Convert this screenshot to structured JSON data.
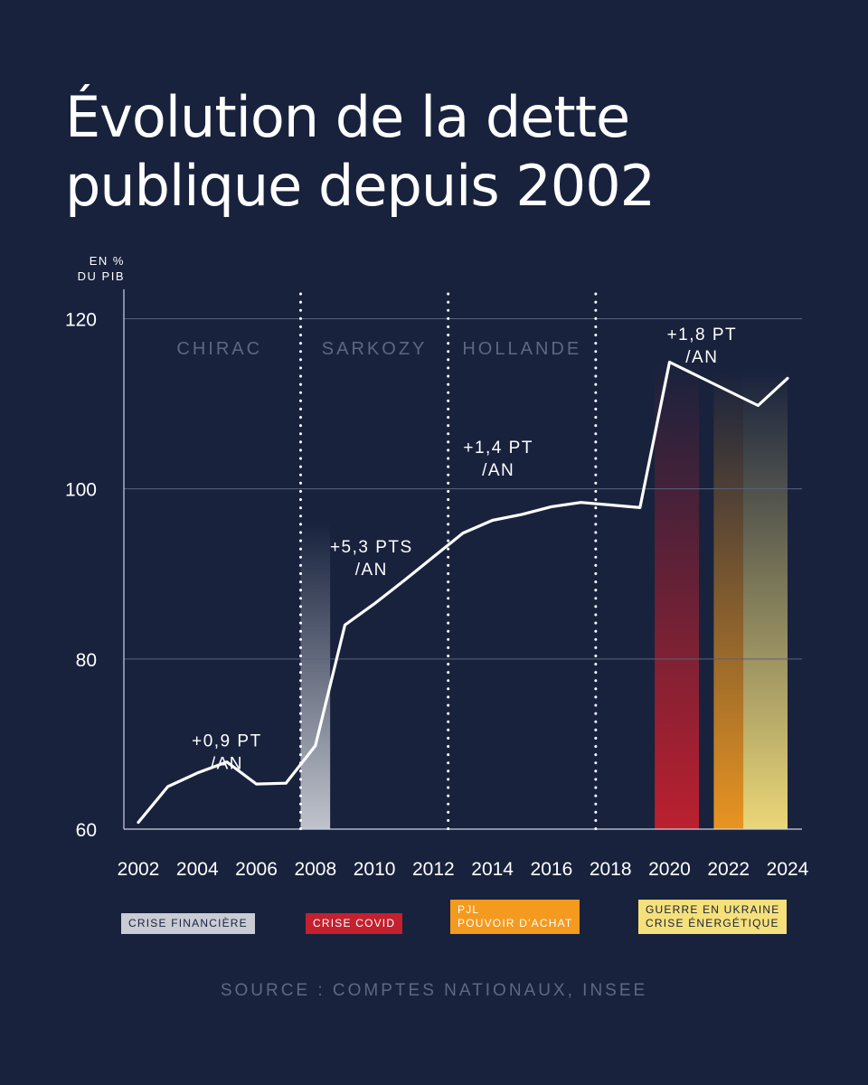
{
  "title_lines": [
    "Évolution de la dette",
    "publique depuis 2002"
  ],
  "unit_lines": [
    "EN %",
    "DU PIB"
  ],
  "source": "SOURCE : COMPTES NATIONAUX, INSEE",
  "legend": [
    {
      "id": "fin",
      "lines": [
        "CRISE FINANCIÈRE"
      ],
      "color": "#c9ccd4"
    },
    {
      "id": "covid",
      "lines": [
        "CRISE COVID"
      ],
      "color": "#c4202e"
    },
    {
      "id": "pjl",
      "lines": [
        "PJL",
        "POUVOIR D'ACHAT"
      ],
      "color": "#f39a1f"
    },
    {
      "id": "ukr",
      "lines": [
        "GUERRE EN UKRAINE",
        "CRISE ÉNERGÉTIQUE"
      ],
      "color": "#f6e07a"
    }
  ],
  "chart_data": {
    "type": "line",
    "title": "Évolution de la dette publique depuis 2002",
    "ylabel": "EN % DU PIB",
    "xlabel": "",
    "ylim": [
      60,
      120
    ],
    "xlim": [
      2002,
      2024
    ],
    "yticks": [
      60,
      80,
      100,
      120
    ],
    "xticks": [
      2002,
      2004,
      2006,
      2008,
      2010,
      2012,
      2014,
      2016,
      2018,
      2020,
      2022,
      2024
    ],
    "grid": true,
    "line_color": "#ffffff",
    "series": [
      {
        "x": [
          2002,
          2003,
          2004,
          2005,
          2006,
          2007,
          2008,
          2009,
          2010,
          2011,
          2012,
          2013,
          2014,
          2015,
          2016,
          2017,
          2018,
          2019,
          2020,
          2021,
          2022,
          2023,
          2024
        ],
        "y": [
          60.8,
          65.0,
          66.6,
          67.9,
          65.3,
          65.4,
          69.8,
          84.0,
          86.5,
          89.2,
          92.0,
          94.8,
          96.3,
          97.0,
          97.9,
          98.4,
          98.1,
          97.8,
          114.9,
          113.2,
          111.5,
          109.8,
          113.0
        ]
      }
    ],
    "periods": [
      {
        "label": "CHIRAC",
        "start": 2002,
        "end": 2007.5
      },
      {
        "label": "SARKOZY",
        "start": 2007.5,
        "end": 2012.5
      },
      {
        "label": "HOLLANDE",
        "start": 2012.5,
        "end": 2017.5
      }
    ],
    "period_dividers": [
      2007.5,
      2012.5,
      2017.5
    ],
    "annotations": [
      {
        "lines": [
          "+0,9 PT",
          "/AN"
        ],
        "x": 2005.0,
        "y": 69.7
      },
      {
        "lines": [
          "+5,3 PTS",
          "/AN"
        ],
        "x": 2009.9,
        "y": 92.5
      },
      {
        "lines": [
          "+1,4 PT",
          "/AN"
        ],
        "x": 2014.2,
        "y": 104.2
      },
      {
        "lines": [
          "+1,8 PT",
          "/AN"
        ],
        "x": 2021.1,
        "y": 117.5
      }
    ],
    "crisis_bands": [
      {
        "legend": "CRISE FINANCIÈRE",
        "start": 2007.5,
        "end": 2008.5,
        "color": "#c9ccd4"
      },
      {
        "legend": "CRISE COVID",
        "start": 2019.5,
        "end": 2021.0,
        "color": "#c4202e"
      },
      {
        "legend": "PJL POUVOIR D'ACHAT",
        "start": 2021.5,
        "end": 2022.5,
        "color": "#f39a1f"
      },
      {
        "legend": "GUERRE EN UKRAINE CRISE ÉNERGÉTIQUE",
        "start": 2022.5,
        "end": 2024.0,
        "color": "#f6e07a"
      }
    ]
  }
}
